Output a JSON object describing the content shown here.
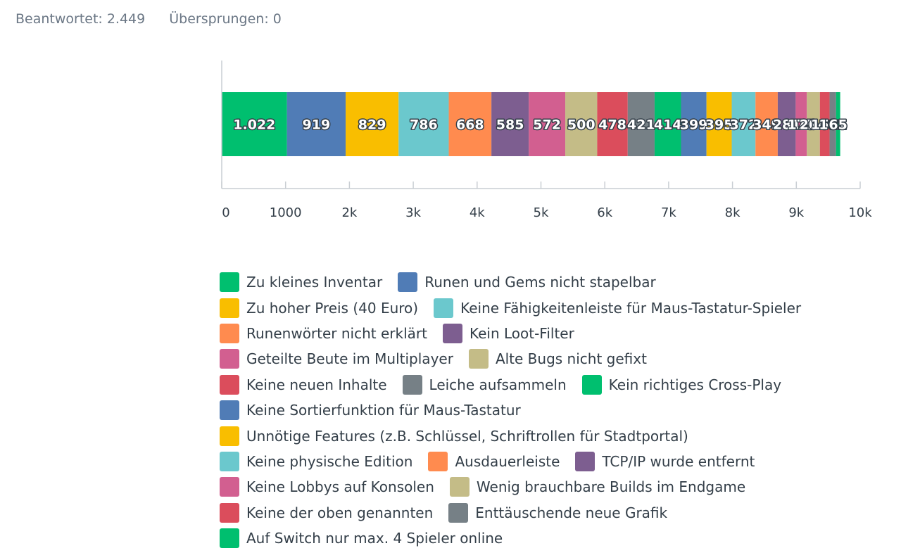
{
  "summary": {
    "answered_label": "Beantwortet:",
    "answered_value": "2.449",
    "skipped_label": "Übersprungen:",
    "skipped_value": "0"
  },
  "chart_data": {
    "type": "bar",
    "orientation": "horizontal",
    "stacked": true,
    "title": "",
    "xlabel": "",
    "ylabel": "",
    "xlim": [
      0,
      10000
    ],
    "x_ticks": [
      "0",
      "1000",
      "2k",
      "3k",
      "4k",
      "5k",
      "6k",
      "7k",
      "8k",
      "9k",
      "10k"
    ],
    "x_tick_values": [
      0,
      1000,
      2000,
      3000,
      4000,
      5000,
      6000,
      7000,
      8000,
      9000,
      10000
    ],
    "grid": false,
    "legend_position": "bottom",
    "series": [
      {
        "name": "Zu kleines Inventar",
        "value": 1022,
        "label": "1.022",
        "color": "#00bf6f"
      },
      {
        "name": "Runen und Gems nicht stapelbar",
        "value": 919,
        "label": "919",
        "color": "#507cb6"
      },
      {
        "name": "Zu hoher Preis (40 Euro)",
        "value": 829,
        "label": "829",
        "color": "#f9be00"
      },
      {
        "name": "Keine Fähigkeitenleiste für Maus-Tastatur-Spieler",
        "value": 786,
        "label": "786",
        "color": "#6bc8cd"
      },
      {
        "name": "Runenwörter nicht erklärt",
        "value": 668,
        "label": "668",
        "color": "#ff8b4f"
      },
      {
        "name": "Kein Loot-Filter",
        "value": 585,
        "label": "585",
        "color": "#7d5e90"
      },
      {
        "name": "Geteilte Beute im Multiplayer",
        "value": 572,
        "label": "572",
        "color": "#d25f90"
      },
      {
        "name": "Alte Bugs nicht gefixt",
        "value": 500,
        "label": "500",
        "color": "#c4bc87"
      },
      {
        "name": "Keine neuen Inhalte",
        "value": 478,
        "label": "478",
        "color": "#db4d5c"
      },
      {
        "name": "Leiche aufsammeln",
        "value": 421,
        "label": "421",
        "color": "#768086"
      },
      {
        "name": "Kein richtiges Cross-Play",
        "value": 414,
        "label": "414",
        "color": "#00bf6f"
      },
      {
        "name": "Keine Sortierfunktion für Maus-Tastatur",
        "value": 399,
        "label": "399",
        "color": "#507cb6"
      },
      {
        "name": "Unnötige Features (z.B. Schlüssel, Schriftrollen für Stadtportal)",
        "value": 395,
        "label": "395",
        "color": "#f9be00"
      },
      {
        "name": "Keine physische Edition",
        "value": 372,
        "label": "372",
        "color": "#6bc8cd"
      },
      {
        "name": "Ausdauerleiste",
        "value": 349,
        "label": "349",
        "color": "#ff8b4f"
      },
      {
        "name": "TCP/IP wurde entfernt",
        "value": 281,
        "label": "281",
        "color": "#7d5e90"
      },
      {
        "name": "Keine Lobbys auf Konsolen",
        "value": 175,
        "label": "175",
        "color": "#d25f90"
      },
      {
        "name": "Wenig brauchbare Builds im Endgame",
        "value": 204,
        "label": "204",
        "color": "#c4bc87"
      },
      {
        "name": "Keine der oben genannten",
        "value": 152,
        "label": "152",
        "color": "#db4d5c"
      },
      {
        "name": "Enttäuschende neue Grafik",
        "value": 101,
        "label": "101",
        "color": "#768086"
      },
      {
        "name": "Auf Switch nur max. 4 Spieler online",
        "value": 65,
        "label": "65",
        "color": "#00bf6f"
      }
    ]
  },
  "legend_rows": [
    [
      0,
      1
    ],
    [
      2,
      3
    ],
    [
      4,
      5
    ],
    [
      6,
      7
    ],
    [
      8,
      9,
      10
    ],
    [
      11
    ],
    [
      12
    ],
    [
      13,
      14,
      15
    ],
    [
      16,
      17
    ],
    [
      18,
      19
    ],
    [
      20
    ]
  ]
}
